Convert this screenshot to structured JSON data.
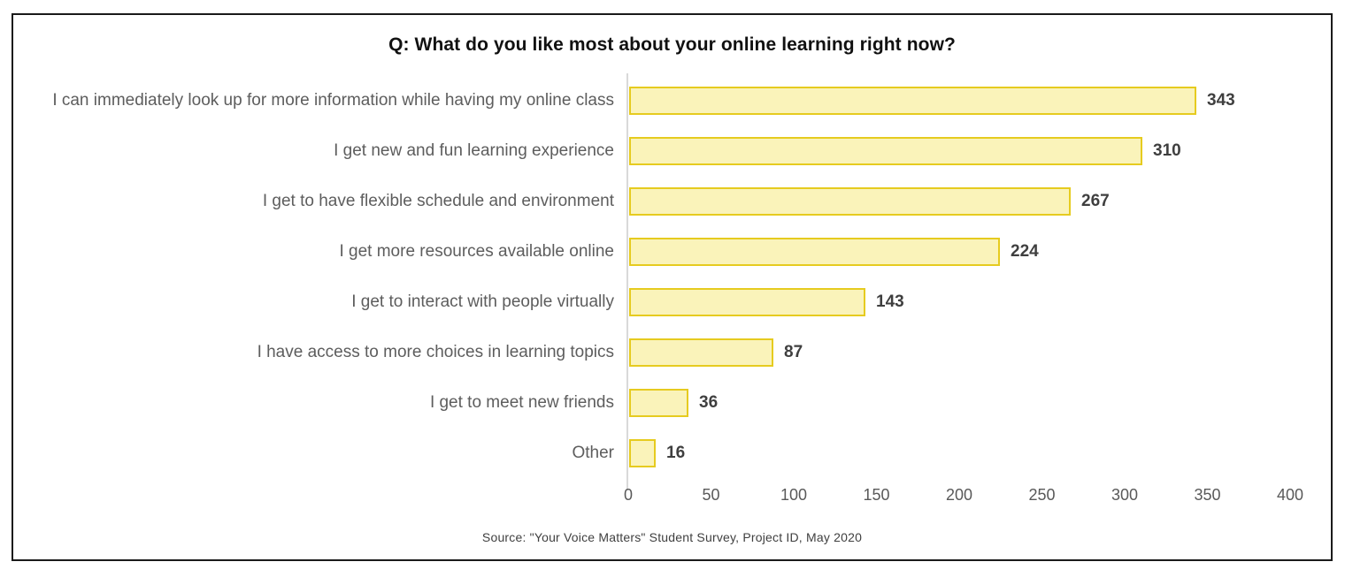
{
  "chart_data": {
    "type": "bar",
    "orientation": "horizontal",
    "title": "Q: What do you like most about your online learning right now?",
    "categories": [
      "I can immediately look up for more information while having my online class",
      "I get new and fun learning experience",
      "I get to have flexible schedule and environment",
      "I get more resources available online",
      "I get to interact with people virtually",
      "I have access to more choices in learning topics",
      "I get to meet new friends",
      "Other"
    ],
    "values": [
      343,
      310,
      267,
      224,
      143,
      87,
      36,
      16
    ],
    "xlabel": "",
    "ylabel": "",
    "xlim": [
      0,
      400
    ],
    "xticks": [
      0,
      50,
      100,
      150,
      200,
      250,
      300,
      350,
      400
    ],
    "grid": false,
    "legend": "none",
    "data_labels": true,
    "bar_fill_color": "#faf3ba",
    "bar_border_color": "#e6cb1f",
    "source": "Source: \"Your Voice Matters\" Student Survey, Project ID, May 2020"
  }
}
